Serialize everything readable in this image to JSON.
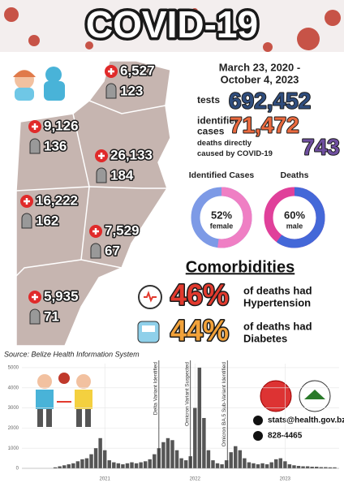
{
  "header": {
    "title": "COVID-19"
  },
  "date_range": [
    "March 23, 2020 -",
    "October 4, 2023"
  ],
  "stats": [
    {
      "label": [
        "tests"
      ],
      "value": "692,452"
    },
    {
      "label": [
        "identified",
        "cases"
      ],
      "value": "71,472"
    },
    {
      "label": [
        "deaths directly",
        "caused by COVID-19"
      ],
      "value": "743"
    }
  ],
  "districts": [
    {
      "cases": "6,527",
      "deaths": "123"
    },
    {
      "cases": "9,126",
      "deaths": "136"
    },
    {
      "cases": "26,133",
      "deaths": "184"
    },
    {
      "cases": "16,222",
      "deaths": "162"
    },
    {
      "cases": "7,529",
      "deaths": "67"
    },
    {
      "cases": "5,935",
      "deaths": "71"
    }
  ],
  "donuts": [
    {
      "title": "Identified Cases",
      "value": 52,
      "value_label": "52%",
      "sublabel": "female",
      "colors": [
        "#ef7fc4",
        "#7d9ae6"
      ]
    },
    {
      "title": "Deaths",
      "value": 60,
      "value_label": "60%",
      "sublabel": "male",
      "colors": [
        "#4468d8",
        "#e0409a"
      ]
    }
  ],
  "comorbidities": {
    "title": "Comorbidities",
    "items": [
      {
        "value": "46%",
        "text": [
          "of deaths had",
          "Hypertension"
        ]
      },
      {
        "value": "44%",
        "text": [
          "of deaths had",
          "Diabetes"
        ]
      }
    ]
  },
  "source": "Source: Belize Health Information System",
  "contact": {
    "email": "stats@health.gov.bz",
    "phone": "828-4465"
  },
  "chart_data": {
    "type": "bar",
    "color": "#555555",
    "x": [
      2020.45,
      2020.5,
      2020.55,
      2020.6,
      2020.65,
      2020.7,
      2020.75,
      2020.8,
      2020.85,
      2020.9,
      2020.95,
      2021.0,
      2021.05,
      2021.1,
      2021.15,
      2021.2,
      2021.25,
      2021.3,
      2021.35,
      2021.4,
      2021.45,
      2021.5,
      2021.55,
      2021.6,
      2021.65,
      2021.7,
      2021.75,
      2021.8,
      2021.85,
      2021.9,
      2021.95,
      2022.0,
      2022.05,
      2022.1,
      2022.15,
      2022.2,
      2022.25,
      2022.3,
      2022.35,
      2022.4,
      2022.45,
      2022.5,
      2022.55,
      2022.6,
      2022.65,
      2022.7,
      2022.75,
      2022.8,
      2022.85,
      2022.9,
      2022.95,
      2023.0,
      2023.05,
      2023.1,
      2023.15,
      2023.2,
      2023.25,
      2023.3,
      2023.35,
      2023.4,
      2023.45,
      2023.5,
      2023.55
    ],
    "values": [
      50,
      100,
      150,
      200,
      250,
      350,
      450,
      500,
      700,
      1000,
      1500,
      900,
      400,
      300,
      250,
      200,
      250,
      300,
      250,
      300,
      350,
      450,
      700,
      1000,
      1300,
      1500,
      1400,
      900,
      500,
      400,
      600,
      3000,
      5000,
      2500,
      900,
      400,
      250,
      200,
      400,
      800,
      1100,
      900,
      500,
      300,
      250,
      200,
      250,
      200,
      300,
      450,
      500,
      350,
      200,
      150,
      120,
      100,
      100,
      80,
      80,
      60,
      60,
      50,
      50
    ],
    "xlim": [
      2020.08,
      2023.6
    ],
    "xticks": [
      2021,
      2022,
      2023
    ],
    "ylim": [
      0,
      5200
    ],
    "yticks": [
      0,
      1000,
      2000,
      3000,
      4000,
      5000
    ],
    "grid": true,
    "annotations": [
      {
        "text": "Delta Variant Identified",
        "x": 2021.6
      },
      {
        "text": "Omicron Variant Suspected",
        "x": 2021.95
      },
      {
        "text": "Omicron BA.5 Sub-Variant Identified",
        "x": 2022.36
      }
    ]
  }
}
